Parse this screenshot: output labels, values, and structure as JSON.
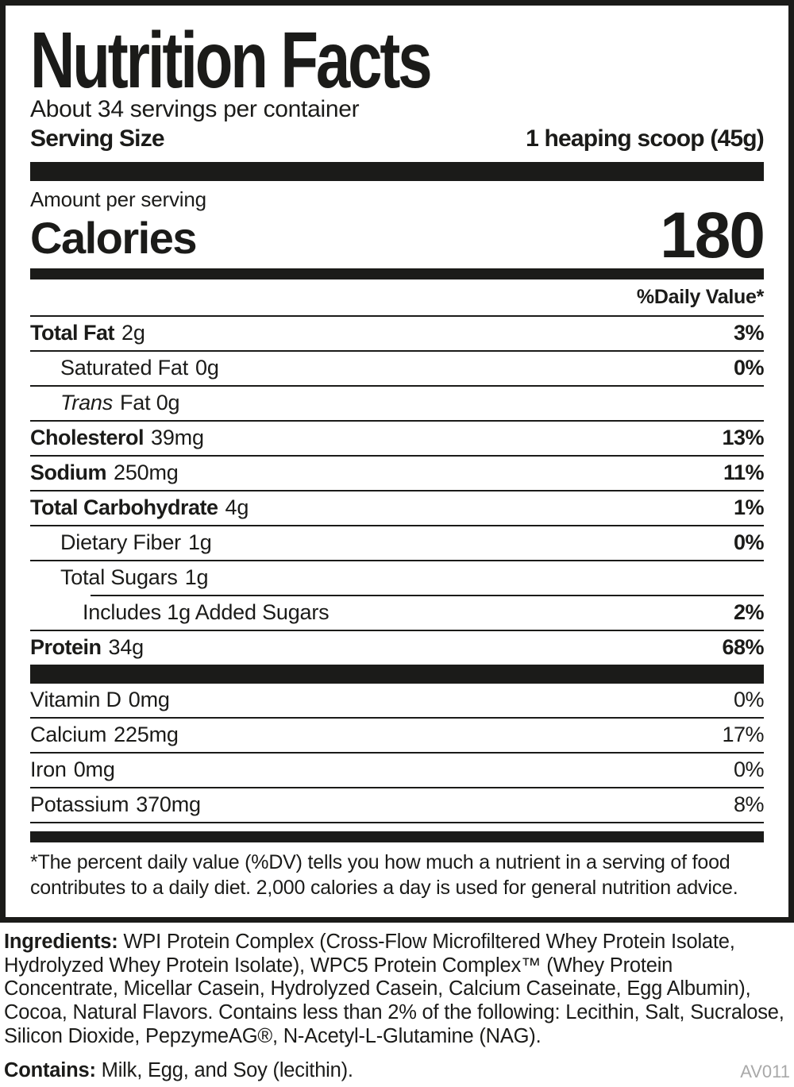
{
  "colors": {
    "ink": "#1b1b19",
    "code_gray": "#a9a9a9"
  },
  "header": {
    "title": "Nutrition Facts",
    "servings_per_container": "About 34 servings per container",
    "serving_size_label": "Serving Size",
    "serving_size_value": "1 heaping scoop (45g)"
  },
  "calories": {
    "amount_per_serving": "Amount per serving",
    "label": "Calories",
    "value": "180"
  },
  "daily_value_header": "%Daily Value*",
  "nutrients": [
    {
      "name": "Total Fat",
      "amount": "2g",
      "dv": "3%"
    },
    {
      "name": "Saturated Fat",
      "amount": "0g",
      "dv": "0%"
    },
    {
      "name_italic": "Trans",
      "amount": "Fat 0g",
      "dv": ""
    },
    {
      "name": "Cholesterol",
      "amount": "39mg",
      "dv": "13%"
    },
    {
      "name": "Sodium",
      "amount": "250mg",
      "dv": "11%"
    },
    {
      "name": "Total Carbohydrate",
      "amount": "4g",
      "dv": "1%"
    },
    {
      "name": "Dietary Fiber",
      "amount": "1g",
      "dv": "0%"
    },
    {
      "name": "Total Sugars",
      "amount": "1g",
      "dv": ""
    },
    {
      "name": "Includes 1g Added Sugars",
      "amount": "",
      "dv": "2%"
    },
    {
      "name": "Protein",
      "amount": "34g",
      "dv": "68%"
    }
  ],
  "vitamins": [
    {
      "name": "Vitamin D",
      "amount": "0mg",
      "dv": "0%"
    },
    {
      "name": "Calcium",
      "amount": "225mg",
      "dv": "17%"
    },
    {
      "name": "Iron",
      "amount": "0mg",
      "dv": "0%"
    },
    {
      "name": "Potassium",
      "amount": "370mg",
      "dv": "8%"
    }
  ],
  "footnote": "*The percent daily value (%DV) tells you how much a nutrient in a serving of food contributes to a daily diet. 2,000 calories a day is used for general nutrition advice.",
  "ingredients": {
    "label": "Ingredients:",
    "text": " WPI Protein Complex (Cross-Flow Microfiltered Whey Protein Isolate, Hydrolyzed Whey Protein Isolate), WPC5 Protein Complex™ (Whey Protein Concentrate, Micellar Casein, Hydrolyzed Casein, Calcium Caseinate, Egg Albumin), Cocoa, Natural Flavors. Contains less than 2% of the following: Lecithin, Salt, Sucralose, Silicon Dioxide, PepzymeAG®, N-Acetyl-L-Glutamine (NAG)."
  },
  "contains": {
    "label": "Contains:",
    "text": " Milk, Egg, and Soy (lecithin)."
  },
  "code": "AV011"
}
